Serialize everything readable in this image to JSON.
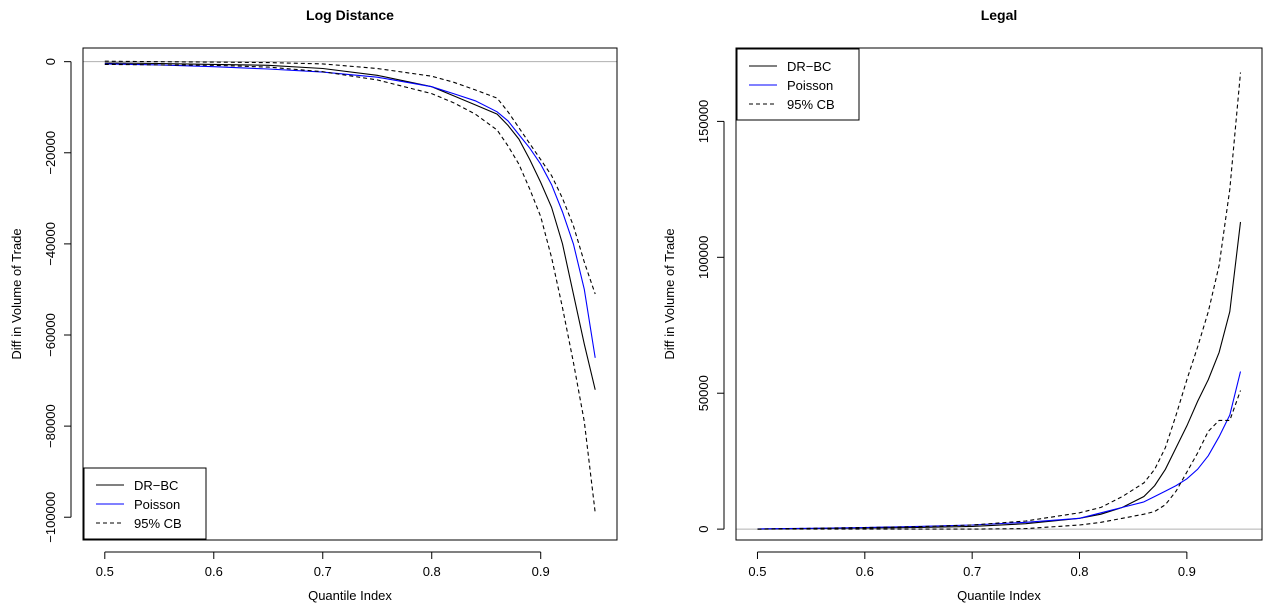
{
  "chart_data": [
    {
      "type": "line",
      "title": "Log Distance",
      "xlabel": "Quantile Index",
      "ylabel": "Diff in Volume of Trade",
      "xlim": [
        0.48,
        0.97
      ],
      "ylim": [
        -105000,
        3000
      ],
      "xticks": [
        0.5,
        0.6,
        0.7,
        0.8,
        0.9
      ],
      "xtick_labels": [
        "0.5",
        "0.6",
        "0.7",
        "0.8",
        "0.9"
      ],
      "yticks": [
        0,
        -20000,
        -40000,
        -60000,
        -80000,
        -100000
      ],
      "ytick_labels": [
        "0",
        "−20000",
        "−40000",
        "−60000",
        "−80000",
        "−100000"
      ],
      "hline": 0,
      "legend_position": "bottom-left",
      "series": [
        {
          "name": "DR−BC",
          "color": "#000000",
          "dash": "solid",
          "x": [
            0.5,
            0.55,
            0.6,
            0.65,
            0.7,
            0.75,
            0.8,
            0.82,
            0.84,
            0.86,
            0.87,
            0.88,
            0.89,
            0.9,
            0.91,
            0.92,
            0.93,
            0.94,
            0.95
          ],
          "y": [
            -300,
            -400,
            -600,
            -800,
            -1500,
            -3000,
            -5500,
            -7500,
            -9500,
            -11500,
            -14000,
            -17000,
            -21500,
            -26500,
            -32000,
            -40000,
            -51000,
            -62000,
            -72000
          ]
        },
        {
          "name": "Poisson",
          "color": "#0000ff",
          "dash": "solid",
          "x": [
            0.5,
            0.55,
            0.6,
            0.65,
            0.7,
            0.75,
            0.8,
            0.82,
            0.84,
            0.86,
            0.87,
            0.88,
            0.89,
            0.9,
            0.91,
            0.92,
            0.93,
            0.94,
            0.95
          ],
          "y": [
            -500,
            -700,
            -1100,
            -1600,
            -2300,
            -3400,
            -5500,
            -7000,
            -8600,
            -11000,
            -13000,
            -16000,
            -19000,
            -22500,
            -27000,
            -33000,
            -40000,
            -50000,
            -65000
          ]
        },
        {
          "name": "95% CB",
          "color": "#000000",
          "dash": "dashed",
          "x": [
            0.5,
            0.55,
            0.6,
            0.65,
            0.7,
            0.75,
            0.8,
            0.82,
            0.84,
            0.86,
            0.87,
            0.88,
            0.89,
            0.9,
            0.91,
            0.92,
            0.93,
            0.94,
            0.95
          ],
          "y": [
            100,
            0,
            -100,
            -200,
            -500,
            -1500,
            -3200,
            -4500,
            -6200,
            -8000,
            -11000,
            -14500,
            -18000,
            -21500,
            -25000,
            -30000,
            -36000,
            -44000,
            -51000
          ]
        },
        {
          "name": "",
          "color": "#000000",
          "dash": "dashed",
          "x": [
            0.5,
            0.55,
            0.6,
            0.65,
            0.7,
            0.75,
            0.8,
            0.82,
            0.84,
            0.86,
            0.87,
            0.88,
            0.89,
            0.9,
            0.91,
            0.92,
            0.93,
            0.94,
            0.95
          ],
          "y": [
            -600,
            -700,
            -800,
            -1200,
            -2200,
            -4000,
            -7000,
            -9000,
            -11500,
            -15000,
            -18500,
            -22500,
            -28000,
            -34000,
            -43000,
            -54000,
            -66000,
            -79000,
            -99000
          ]
        }
      ]
    },
    {
      "type": "line",
      "title": "Legal",
      "xlabel": "Quantile Index",
      "ylabel": "Diff in Volume of Trade",
      "xlim": [
        0.48,
        0.97
      ],
      "ylim": [
        -4000,
        177000
      ],
      "xticks": [
        0.5,
        0.6,
        0.7,
        0.8,
        0.9
      ],
      "xtick_labels": [
        "0.5",
        "0.6",
        "0.7",
        "0.8",
        "0.9"
      ],
      "yticks": [
        0,
        50000,
        100000,
        150000
      ],
      "ytick_labels": [
        "0",
        "50000",
        "100000",
        "150000"
      ],
      "hline": 0,
      "legend_position": "top-left",
      "series": [
        {
          "name": "DR−BC",
          "color": "#000000",
          "dash": "solid",
          "x": [
            0.5,
            0.55,
            0.6,
            0.65,
            0.7,
            0.75,
            0.8,
            0.82,
            0.84,
            0.86,
            0.87,
            0.88,
            0.89,
            0.9,
            0.91,
            0.92,
            0.93,
            0.94,
            0.95
          ],
          "y": [
            0,
            200,
            400,
            600,
            1000,
            2000,
            4000,
            5500,
            8000,
            12000,
            16000,
            22000,
            30000,
            38000,
            47000,
            55000,
            65000,
            80000,
            113000
          ]
        },
        {
          "name": "Poisson",
          "color": "#0000ff",
          "dash": "solid",
          "x": [
            0.5,
            0.55,
            0.6,
            0.65,
            0.7,
            0.75,
            0.8,
            0.82,
            0.84,
            0.86,
            0.87,
            0.88,
            0.89,
            0.9,
            0.91,
            0.92,
            0.93,
            0.94,
            0.95
          ],
          "y": [
            100,
            300,
            600,
            1000,
            1500,
            2500,
            4000,
            6000,
            8000,
            10000,
            12000,
            14000,
            16000,
            18500,
            22000,
            27000,
            34000,
            42000,
            58000
          ]
        },
        {
          "name": "95% CB",
          "color": "#000000",
          "dash": "dashed",
          "x": [
            0.5,
            0.55,
            0.6,
            0.65,
            0.7,
            0.75,
            0.8,
            0.82,
            0.84,
            0.86,
            0.87,
            0.88,
            0.89,
            0.9,
            0.91,
            0.92,
            0.93,
            0.94,
            0.95
          ],
          "y": [
            0,
            300,
            600,
            900,
            1500,
            3000,
            6000,
            8000,
            12000,
            17000,
            22000,
            30000,
            42000,
            55000,
            67000,
            80000,
            97000,
            125000,
            168000
          ]
        },
        {
          "name": "",
          "color": "#000000",
          "dash": "dashed",
          "x": [
            0.5,
            0.55,
            0.6,
            0.65,
            0.7,
            0.75,
            0.8,
            0.82,
            0.84,
            0.86,
            0.87,
            0.88,
            0.89,
            0.9,
            0.91,
            0.92,
            0.93,
            0.94,
            0.95
          ],
          "y": [
            0,
            0,
            0,
            0,
            0,
            200,
            1500,
            2500,
            4000,
            5500,
            6500,
            9000,
            14000,
            21000,
            28000,
            36000,
            40000,
            40000,
            51000
          ]
        }
      ]
    }
  ]
}
